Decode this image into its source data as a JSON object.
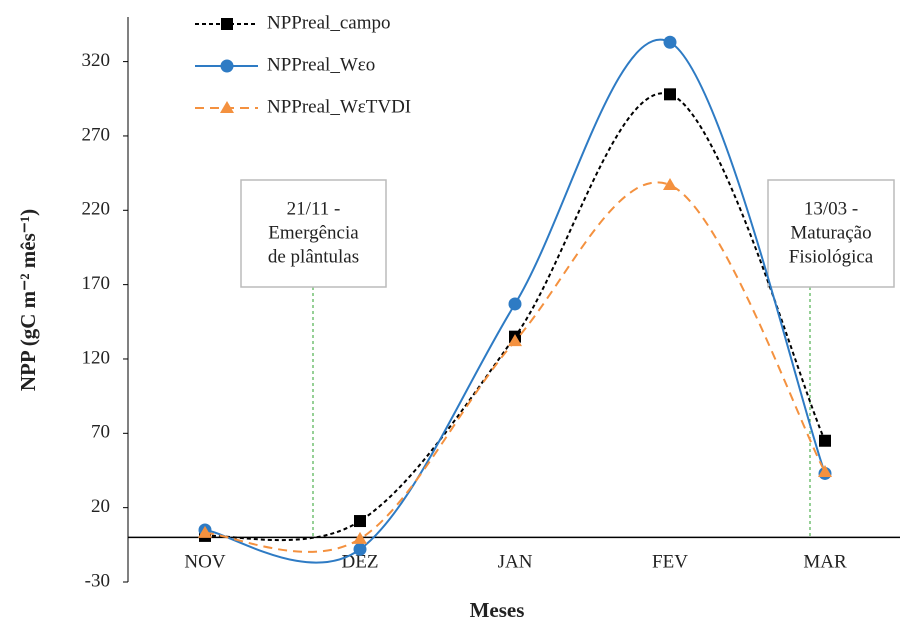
{
  "chart_data": {
    "type": "line",
    "x_label": "Meses",
    "y_label": "NPP (gC m⁻² mês⁻¹)",
    "categories": [
      "NOV",
      "DEZ",
      "JAN",
      "FEV",
      "MAR"
    ],
    "series": [
      {
        "name": "NPPreal_campo",
        "color": "#000000",
        "line_style": "dotted",
        "marker": "square",
        "values": [
          1,
          11,
          135,
          298,
          65
        ]
      },
      {
        "name": "NPPreal_Wεo",
        "color": "#2e7bc4",
        "line_style": "solid",
        "marker": "circle",
        "values": [
          5,
          -8,
          157,
          333,
          43
        ]
      },
      {
        "name": "NPPreal_WεTVDI",
        "color": "#f4913f",
        "line_style": "dashed",
        "marker": "triangle",
        "values": [
          3,
          -1,
          132,
          237,
          44
        ]
      }
    ],
    "ylim": [
      -30,
      350
    ],
    "yticks": [
      -30,
      20,
      70,
      120,
      170,
      220,
      270,
      320
    ],
    "annotations": [
      {
        "lines": [
          "21/11 -",
          "Emergência",
          "de plântulas"
        ]
      },
      {
        "lines": [
          "13/03 -",
          "Maturação",
          "Fisiológica"
        ]
      }
    ]
  }
}
